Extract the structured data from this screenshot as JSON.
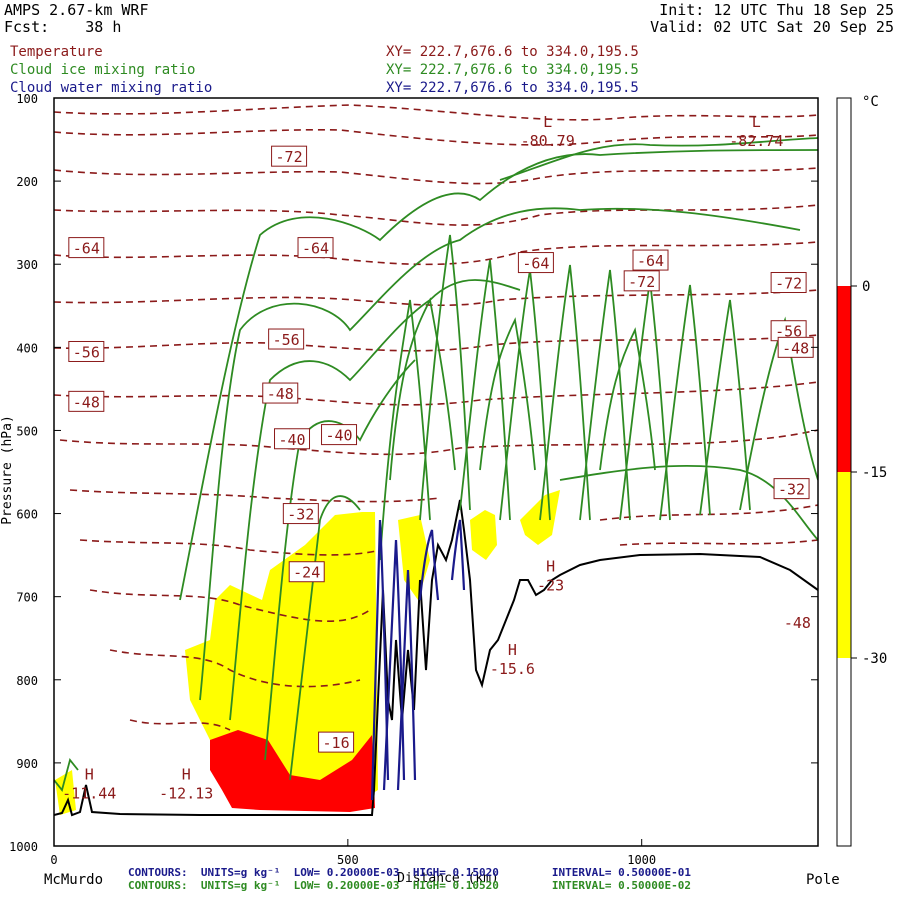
{
  "header": {
    "model": "AMPS 2.67-km WRF",
    "fcst_label": "Fcst:",
    "fcst_value": "38 h",
    "init": "Init: 12 UTC Thu 18 Sep 25",
    "valid": "Valid: 02 UTC Sat 20 Sep 25"
  },
  "fields": [
    {
      "name": "Temperature",
      "xy": "XY= 222.7,676.6 to 334.0,195.5",
      "color": "#8b1a1a"
    },
    {
      "name": "Cloud ice mixing ratio",
      "xy": "XY= 222.7,676.6 to 334.0,195.5",
      "color": "#2e8b22"
    },
    {
      "name": "Cloud water mixing ratio",
      "xy": "XY= 222.7,676.6 to 334.0,195.5",
      "color": "#1a1a8b"
    }
  ],
  "colorbar": {
    "unit": "°C",
    "bands": [
      {
        "from": 0,
        "to": 10,
        "color": "#ffffff"
      },
      {
        "from": -15,
        "to": 0,
        "color": "#ff0000"
      },
      {
        "from": -30,
        "to": -15,
        "color": "#ffff00"
      },
      {
        "from": -45,
        "to": -30,
        "color": "#ffffff"
      }
    ],
    "labels": [
      "0",
      "-15",
      "-30"
    ]
  },
  "footer": {
    "line1": {
      "contours": "CONTOURS:",
      "units": "UNITS=g kg⁻¹",
      "low": "LOW= 0.20000E-03",
      "high": "HIGH= 0.15020",
      "interval": "INTERVAL= 0.50000E-01",
      "color": "#1a1a8b"
    },
    "line2": {
      "contours": "CONTOURS:",
      "units": "UNITS=g kg⁻¹",
      "low": "LOW= 0.20000E-03",
      "high": "HIGH= 0.10520",
      "interval": "INTERVAL= 0.50000E-02",
      "color": "#2e8b22"
    }
  },
  "chart_data": {
    "type": "cross-section contour",
    "x_axis": {
      "label": "Distance (km)",
      "range": [
        0,
        1300
      ],
      "ticks": [
        0,
        500,
        1000
      ],
      "left_end_label": "McMurdo",
      "right_end_label": "Pole"
    },
    "y_axis": {
      "label": "Pressure (hPa)",
      "range": [
        1000,
        100
      ],
      "ticks": [
        100,
        200,
        300,
        400,
        500,
        600,
        700,
        800,
        900,
        1000
      ]
    },
    "temperature_labels": [
      {
        "x": 400,
        "p": 170,
        "text": "-72"
      },
      {
        "x": 1000,
        "p": 320,
        "text": "-72"
      },
      {
        "x": 1250,
        "p": 322,
        "text": "-72"
      },
      {
        "x": 55,
        "p": 280,
        "text": "-64"
      },
      {
        "x": 445,
        "p": 280,
        "text": "-64"
      },
      {
        "x": 820,
        "p": 298,
        "text": "-64"
      },
      {
        "x": 1015,
        "p": 295,
        "text": "-64"
      },
      {
        "x": 55,
        "p": 405,
        "text": "-56"
      },
      {
        "x": 395,
        "p": 390,
        "text": "-56"
      },
      {
        "x": 1250,
        "p": 380,
        "text": "-56"
      },
      {
        "x": 55,
        "p": 465,
        "text": "-48"
      },
      {
        "x": 385,
        "p": 455,
        "text": "-48"
      },
      {
        "x": 1262,
        "p": 400,
        "text": "-48"
      },
      {
        "x": 405,
        "p": 510,
        "text": "-40"
      },
      {
        "x": 485,
        "p": 505,
        "text": "-40"
      },
      {
        "x": 420,
        "p": 600,
        "text": "-32"
      },
      {
        "x": 1255,
        "p": 570,
        "text": "-32"
      },
      {
        "x": 430,
        "p": 670,
        "text": "-24"
      },
      {
        "x": 480,
        "p": 875,
        "text": "-16"
      }
    ],
    "extrema": [
      {
        "kind": "L",
        "x": 840,
        "p": 135,
        "value": "-80.79"
      },
      {
        "kind": "L",
        "x": 1195,
        "p": 135,
        "value": "-82.74"
      },
      {
        "kind": "H",
        "x": 60,
        "p": 920,
        "value": "-11.44"
      },
      {
        "kind": "H",
        "x": 225,
        "p": 920,
        "value": "-12.13"
      },
      {
        "kind": "H",
        "x": 780,
        "p": 770,
        "value": "-15.6"
      },
      {
        "kind": "H",
        "x": 845,
        "p": 670,
        "value": "-23"
      },
      {
        "kind": "",
        "x": 1265,
        "p": 715,
        "value": "-48"
      }
    ]
  }
}
